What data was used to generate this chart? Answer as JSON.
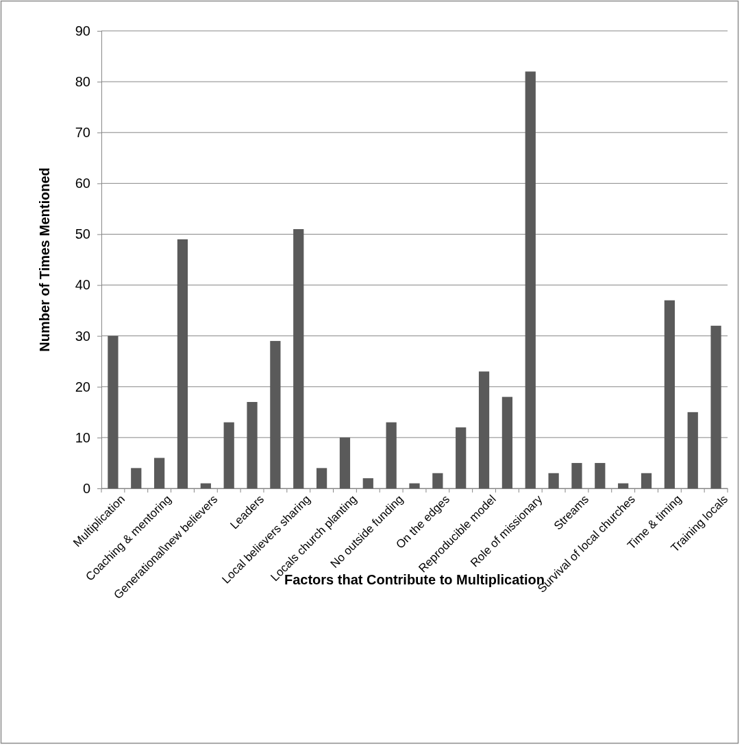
{
  "chart_data": {
    "type": "bar",
    "xlabel": "Factors that Contribute to Multiplication",
    "ylabel": "Number of Times Mentioned",
    "categories": [
      "Multiplication",
      null,
      "Coaching & mentoring",
      null,
      "Generational\\new believers",
      null,
      "Leaders",
      null,
      "Local believers sharing",
      null,
      "Locals church planting",
      null,
      "No outside funding",
      null,
      "On the edges",
      null,
      "Reproducible model",
      null,
      "Role of missionary",
      null,
      "Streams",
      null,
      "Survival of local churches",
      null,
      "Time & timing",
      null,
      "Training locals"
    ],
    "values": [
      30,
      4,
      6,
      49,
      1,
      13,
      17,
      29,
      51,
      4,
      10,
      2,
      13,
      1,
      3,
      12,
      23,
      18,
      82,
      3,
      5,
      5,
      1,
      3,
      37,
      15,
      32
    ],
    "color": "#5a5a5a",
    "ylim": [
      0,
      90
    ],
    "yticks": [
      0,
      10,
      20,
      30,
      40,
      50,
      60,
      70,
      80,
      90
    ],
    "grid": "y"
  }
}
